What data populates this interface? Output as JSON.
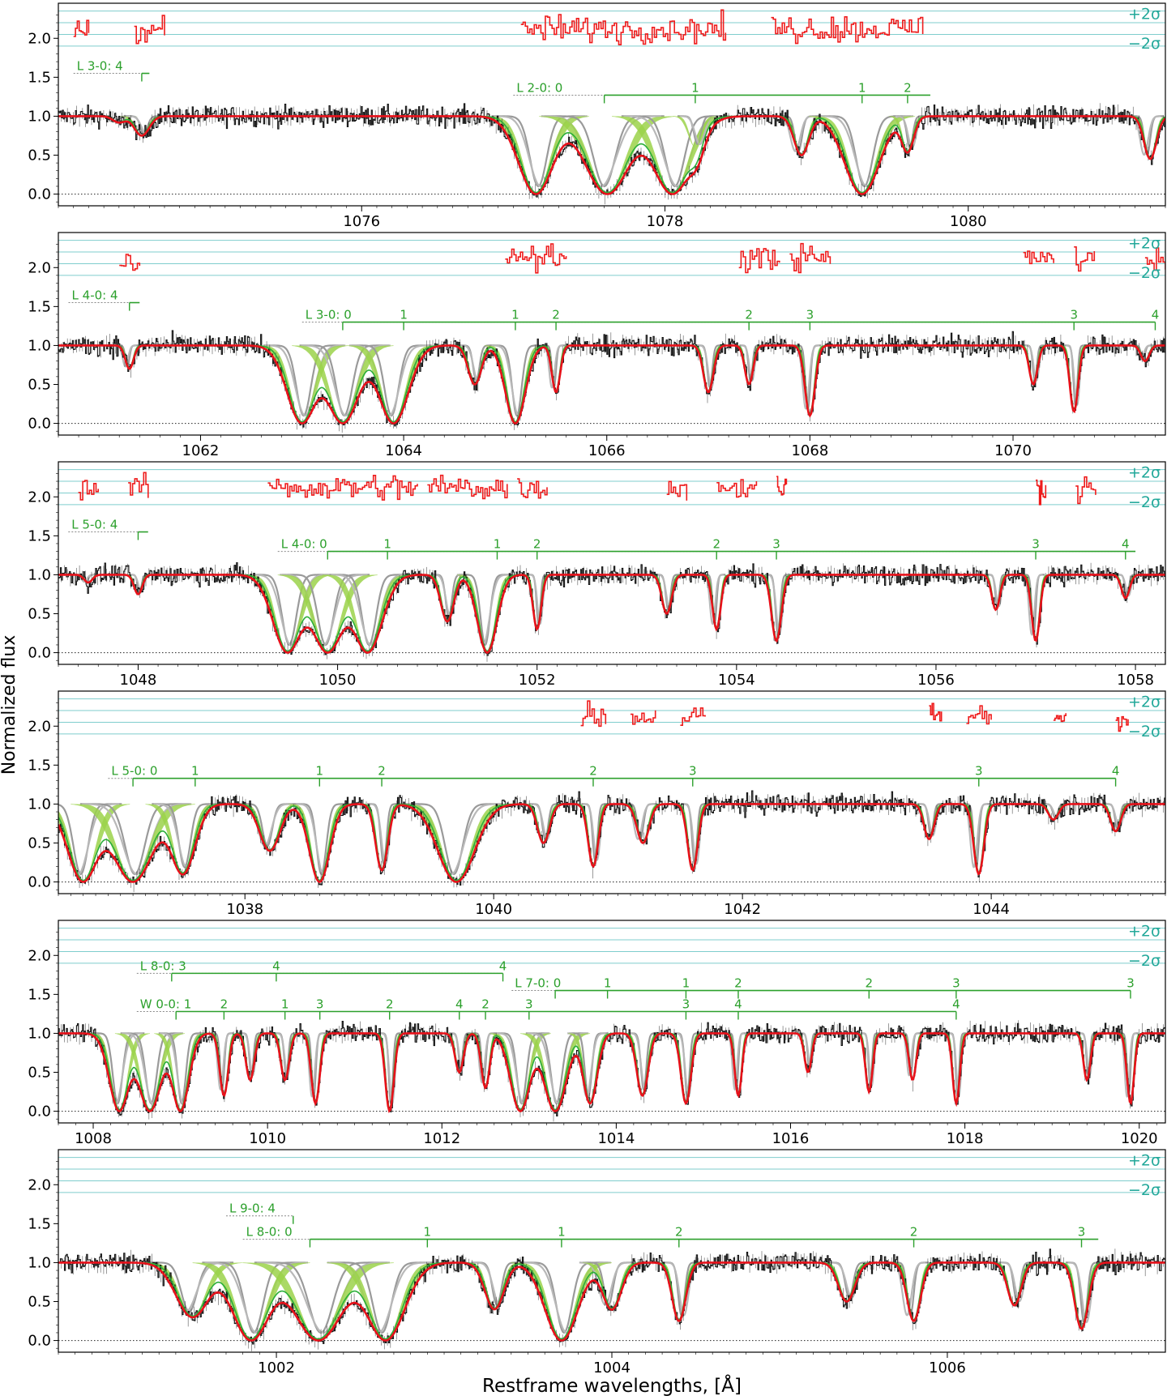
{
  "figure": {
    "ylabel": "Normalized flux",
    "xlabel": "Restframe wavelengths, [Å]",
    "sigma_plus": "+2σ",
    "sigma_minus": "−2σ"
  },
  "colors": {
    "data": "#111111",
    "model_total": "#e8111a",
    "residuals": "#ee1c1c",
    "h2_light": "#9bd24a",
    "h2_dark": "#2bae3a",
    "components": "#9a9a9a",
    "sigma_lines": "#7fcdcd",
    "labels": "#2ca02c",
    "sigma_text": "#22a89a"
  },
  "chart_data": [
    {
      "type": "line",
      "panel": 1,
      "xlim": [
        1074.0,
        1081.3
      ],
      "ylim": [
        -0.15,
        2.45
      ],
      "xticks": [
        1076,
        1078,
        1080
      ],
      "yticks": [
        0.0,
        0.5,
        1.0,
        1.5,
        2.0
      ],
      "ladders": [
        {
          "label": "L 3-0: 4",
          "x0": 1074.1,
          "x1": 1074.6,
          "y": 1.55,
          "ticks": [
            {
              "x": 1074.55,
              "label": "4"
            }
          ]
        },
        {
          "label": "L 2-0: 0",
          "x0": 1077.0,
          "x1": 1079.75,
          "y": 1.27,
          "ticks": [
            {
              "x": 1077.6,
              "label": "0"
            },
            {
              "x": 1078.2,
              "label": "1"
            },
            {
              "x": 1079.3,
              "label": "1"
            },
            {
              "x": 1079.6,
              "label": "2"
            }
          ]
        }
      ],
      "absorptions": [
        {
          "x": 1074.4,
          "depth": 0.08,
          "width": 0.05
        },
        {
          "x": 1074.55,
          "depth": 0.25,
          "width": 0.06
        },
        {
          "x": 1077.15,
          "depth": 1.0,
          "width": 0.14
        },
        {
          "x": 1077.62,
          "depth": 1.0,
          "width": 0.18
        },
        {
          "x": 1078.05,
          "depth": 1.0,
          "width": 0.16
        },
        {
          "x": 1078.2,
          "depth": 0.4,
          "width": 0.06
        },
        {
          "x": 1078.9,
          "depth": 0.5,
          "width": 0.06
        },
        {
          "x": 1079.3,
          "depth": 1.0,
          "width": 0.14
        },
        {
          "x": 1079.6,
          "depth": 0.45,
          "width": 0.05
        },
        {
          "x": 1081.2,
          "depth": 0.55,
          "width": 0.05
        }
      ],
      "residual_segments": [
        [
          1074.1,
          1074.2
        ],
        [
          1074.5,
          1074.7
        ],
        [
          1077.05,
          1078.4
        ],
        [
          1078.7,
          1079.7
        ]
      ]
    },
    {
      "type": "line",
      "panel": 2,
      "xlim": [
        1060.6,
        1071.5
      ],
      "ylim": [
        -0.15,
        2.45
      ],
      "xticks": [
        1062,
        1064,
        1066,
        1068,
        1070
      ],
      "yticks": [
        0.0,
        0.5,
        1.0,
        1.5,
        2.0
      ],
      "ladders": [
        {
          "label": "L 4-0: 4",
          "x0": 1060.7,
          "x1": 1061.4,
          "y": 1.55,
          "ticks": [
            {
              "x": 1061.3,
              "label": "4"
            }
          ]
        },
        {
          "label": "L 3-0: 0",
          "x0": 1063.0,
          "x1": 1071.4,
          "y": 1.3,
          "ticks": [
            {
              "x": 1063.4,
              "label": "0"
            },
            {
              "x": 1064.0,
              "label": "1"
            },
            {
              "x": 1065.1,
              "label": "1"
            },
            {
              "x": 1065.5,
              "label": "2"
            },
            {
              "x": 1067.4,
              "label": "2"
            },
            {
              "x": 1068.0,
              "label": "3"
            },
            {
              "x": 1070.6,
              "label": "3"
            },
            {
              "x": 1071.4,
              "label": "4"
            }
          ]
        }
      ],
      "absorptions": [
        {
          "x": 1061.3,
          "depth": 0.3,
          "width": 0.05
        },
        {
          "x": 1063.0,
          "depth": 1.0,
          "width": 0.18
        },
        {
          "x": 1063.4,
          "depth": 1.0,
          "width": 0.2
        },
        {
          "x": 1063.9,
          "depth": 1.0,
          "width": 0.18
        },
        {
          "x": 1064.7,
          "depth": 0.5,
          "width": 0.08
        },
        {
          "x": 1065.1,
          "depth": 1.0,
          "width": 0.12
        },
        {
          "x": 1065.5,
          "depth": 0.6,
          "width": 0.05
        },
        {
          "x": 1067.0,
          "depth": 0.6,
          "width": 0.06
        },
        {
          "x": 1067.4,
          "depth": 0.5,
          "width": 0.05
        },
        {
          "x": 1068.0,
          "depth": 0.9,
          "width": 0.06
        },
        {
          "x": 1070.2,
          "depth": 0.5,
          "width": 0.05
        },
        {
          "x": 1070.6,
          "depth": 0.85,
          "width": 0.05
        },
        {
          "x": 1071.3,
          "depth": 0.2,
          "width": 0.05
        }
      ],
      "residual_segments": [
        [
          1061.2,
          1061.4
        ],
        [
          1065.0,
          1065.6
        ],
        [
          1067.3,
          1067.7
        ],
        [
          1067.8,
          1068.2
        ],
        [
          1070.1,
          1070.4
        ],
        [
          1070.6,
          1070.8
        ],
        [
          1071.3,
          1071.5
        ]
      ]
    },
    {
      "type": "line",
      "panel": 3,
      "xlim": [
        1047.2,
        1058.3
      ],
      "ylim": [
        -0.15,
        2.45
      ],
      "xticks": [
        1048,
        1050,
        1052,
        1054,
        1056,
        1058
      ],
      "yticks": [
        0.0,
        0.5,
        1.0,
        1.5,
        2.0
      ],
      "ladders": [
        {
          "label": "L 5-0: 4",
          "x0": 1047.3,
          "x1": 1048.1,
          "y": 1.55,
          "ticks": [
            {
              "x": 1048.0,
              "label": "4"
            }
          ]
        },
        {
          "label": "L 4-0: 0",
          "x0": 1049.4,
          "x1": 1058.0,
          "y": 1.3,
          "ticks": [
            {
              "x": 1049.9,
              "label": "0"
            },
            {
              "x": 1050.5,
              "label": "1"
            },
            {
              "x": 1051.6,
              "label": "1"
            },
            {
              "x": 1052.0,
              "label": "2"
            },
            {
              "x": 1053.8,
              "label": "2"
            },
            {
              "x": 1054.4,
              "label": "3"
            },
            {
              "x": 1057.0,
              "label": "3"
            },
            {
              "x": 1057.9,
              "label": "4"
            }
          ]
        }
      ],
      "absorptions": [
        {
          "x": 1047.5,
          "depth": 0.1,
          "width": 0.05
        },
        {
          "x": 1048.0,
          "depth": 0.25,
          "width": 0.05
        },
        {
          "x": 1049.5,
          "depth": 1.0,
          "width": 0.18
        },
        {
          "x": 1049.9,
          "depth": 1.0,
          "width": 0.2
        },
        {
          "x": 1050.3,
          "depth": 1.0,
          "width": 0.18
        },
        {
          "x": 1051.1,
          "depth": 0.6,
          "width": 0.08
        },
        {
          "x": 1051.5,
          "depth": 1.0,
          "width": 0.12
        },
        {
          "x": 1052.0,
          "depth": 0.7,
          "width": 0.05
        },
        {
          "x": 1053.3,
          "depth": 0.5,
          "width": 0.06
        },
        {
          "x": 1053.8,
          "depth": 0.7,
          "width": 0.05
        },
        {
          "x": 1054.4,
          "depth": 0.85,
          "width": 0.06
        },
        {
          "x": 1056.6,
          "depth": 0.45,
          "width": 0.05
        },
        {
          "x": 1057.0,
          "depth": 0.85,
          "width": 0.05
        },
        {
          "x": 1057.9,
          "depth": 0.3,
          "width": 0.05
        }
      ],
      "residual_segments": [
        [
          1047.4,
          1047.6
        ],
        [
          1047.9,
          1048.1
        ],
        [
          1049.3,
          1050.8
        ],
        [
          1050.9,
          1051.7
        ],
        [
          1051.8,
          1052.1
        ],
        [
          1053.3,
          1053.5
        ],
        [
          1053.8,
          1054.2
        ],
        [
          1054.4,
          1054.5
        ],
        [
          1057.0,
          1057.1
        ],
        [
          1057.4,
          1057.6
        ]
      ]
    },
    {
      "type": "line",
      "panel": 4,
      "xlim": [
        1036.5,
        1045.4
      ],
      "ylim": [
        -0.15,
        2.45
      ],
      "xticks": [
        1038,
        1040,
        1042,
        1044
      ],
      "yticks": [
        0.0,
        0.5,
        1.0,
        1.5,
        2.0
      ],
      "ladders": [
        {
          "label": "L 5-0: 0",
          "x0": 1036.9,
          "x1": 1045.0,
          "y": 1.33,
          "ticks": [
            {
              "x": 1037.1,
              "label": "0"
            },
            {
              "x": 1037.6,
              "label": "1"
            },
            {
              "x": 1038.6,
              "label": "1"
            },
            {
              "x": 1039.1,
              "label": "2"
            },
            {
              "x": 1040.8,
              "label": "2"
            },
            {
              "x": 1041.6,
              "label": "3"
            },
            {
              "x": 1043.9,
              "label": "3"
            },
            {
              "x": 1045.0,
              "label": "4"
            }
          ]
        }
      ],
      "absorptions": [
        {
          "x": 1036.7,
          "depth": 1.0,
          "width": 0.15
        },
        {
          "x": 1037.1,
          "depth": 1.0,
          "width": 0.2
        },
        {
          "x": 1037.5,
          "depth": 0.9,
          "width": 0.12
        },
        {
          "x": 1038.2,
          "depth": 0.6,
          "width": 0.1
        },
        {
          "x": 1038.6,
          "depth": 1.0,
          "width": 0.1
        },
        {
          "x": 1039.1,
          "depth": 0.85,
          "width": 0.06
        },
        {
          "x": 1039.7,
          "depth": 1.0,
          "width": 0.18
        },
        {
          "x": 1040.4,
          "depth": 0.5,
          "width": 0.06
        },
        {
          "x": 1040.8,
          "depth": 0.8,
          "width": 0.05
        },
        {
          "x": 1041.2,
          "depth": 0.5,
          "width": 0.06
        },
        {
          "x": 1041.6,
          "depth": 0.85,
          "width": 0.05
        },
        {
          "x": 1043.5,
          "depth": 0.45,
          "width": 0.05
        },
        {
          "x": 1043.9,
          "depth": 0.9,
          "width": 0.05
        },
        {
          "x": 1044.5,
          "depth": 0.2,
          "width": 0.05
        },
        {
          "x": 1045.0,
          "depth": 0.35,
          "width": 0.05
        }
      ],
      "residual_segments": [
        [
          1040.7,
          1040.9
        ],
        [
          1041.1,
          1041.3
        ],
        [
          1041.5,
          1041.7
        ],
        [
          1043.5,
          1043.6
        ],
        [
          1043.8,
          1044.0
        ],
        [
          1044.5,
          1044.6
        ],
        [
          1045.0,
          1045.1
        ]
      ]
    },
    {
      "type": "line",
      "panel": 5,
      "xlim": [
        1007.6,
        1020.3
      ],
      "ylim": [
        -0.15,
        2.45
      ],
      "xticks": [
        1008,
        1010,
        1012,
        1014,
        1016,
        1018,
        1020
      ],
      "yticks": [
        0.0,
        0.5,
        1.0,
        1.5,
        2.0
      ],
      "ladders": [
        {
          "label": "L 8-0: 3",
          "x0": 1008.5,
          "x1": 1012.7,
          "y": 1.77,
          "ticks": [
            {
              "x": 1008.9,
              "label": "3"
            },
            {
              "x": 1010.1,
              "label": "4"
            },
            {
              "x": 1012.7,
              "label": "4"
            }
          ]
        },
        {
          "label": "L 7-0: 0",
          "x0": 1012.8,
          "x1": 1019.9,
          "y": 1.55,
          "ticks": [
            {
              "x": 1013.3,
              "label": "0"
            },
            {
              "x": 1013.9,
              "label": "1"
            },
            {
              "x": 1014.8,
              "label": "1"
            },
            {
              "x": 1015.4,
              "label": "2"
            },
            {
              "x": 1016.9,
              "label": "2"
            },
            {
              "x": 1017.9,
              "label": "3"
            },
            {
              "x": 1019.9,
              "label": "3"
            }
          ]
        },
        {
          "label": "W 0-0: 1",
          "x0": 1008.5,
          "x1": 1017.9,
          "y": 1.28,
          "ticks": [
            {
              "x": 1008.95,
              "label": "0"
            },
            {
              "x": 1009.5,
              "label": "2"
            },
            {
              "x": 1010.2,
              "label": "1"
            },
            {
              "x": 1010.6,
              "label": "3"
            },
            {
              "x": 1011.4,
              "label": "2"
            },
            {
              "x": 1012.2,
              "label": "4"
            },
            {
              "x": 1012.5,
              "label": "2"
            },
            {
              "x": 1013.0,
              "label": "3"
            },
            {
              "x": 1014.8,
              "label": "3"
            },
            {
              "x": 1015.4,
              "label": "4"
            },
            {
              "x": 1017.9,
              "label": "4"
            }
          ]
        }
      ],
      "absorptions": [
        {
          "x": 1008.3,
          "depth": 1.0,
          "width": 0.14
        },
        {
          "x": 1008.65,
          "depth": 1.0,
          "width": 0.16
        },
        {
          "x": 1009.0,
          "depth": 1.0,
          "width": 0.12
        },
        {
          "x": 1009.5,
          "depth": 0.8,
          "width": 0.06
        },
        {
          "x": 1009.8,
          "depth": 0.6,
          "width": 0.06
        },
        {
          "x": 1010.2,
          "depth": 0.6,
          "width": 0.06
        },
        {
          "x": 1010.55,
          "depth": 0.9,
          "width": 0.06
        },
        {
          "x": 1011.4,
          "depth": 1.0,
          "width": 0.06
        },
        {
          "x": 1012.2,
          "depth": 0.5,
          "width": 0.06
        },
        {
          "x": 1012.5,
          "depth": 0.7,
          "width": 0.06
        },
        {
          "x": 1012.9,
          "depth": 1.0,
          "width": 0.14
        },
        {
          "x": 1013.3,
          "depth": 1.0,
          "width": 0.16
        },
        {
          "x": 1013.7,
          "depth": 0.9,
          "width": 0.1
        },
        {
          "x": 1014.3,
          "depth": 0.8,
          "width": 0.08
        },
        {
          "x": 1014.8,
          "depth": 0.9,
          "width": 0.07
        },
        {
          "x": 1015.4,
          "depth": 0.8,
          "width": 0.05
        },
        {
          "x": 1016.2,
          "depth": 0.5,
          "width": 0.05
        },
        {
          "x": 1016.9,
          "depth": 0.75,
          "width": 0.05
        },
        {
          "x": 1017.4,
          "depth": 0.6,
          "width": 0.05
        },
        {
          "x": 1017.9,
          "depth": 0.9,
          "width": 0.05
        },
        {
          "x": 1019.4,
          "depth": 0.6,
          "width": 0.05
        },
        {
          "x": 1019.9,
          "depth": 0.9,
          "width": 0.05
        }
      ],
      "residual_segments": []
    },
    {
      "type": "line",
      "panel": 6,
      "xlim": [
        1000.7,
        1007.3
      ],
      "ylim": [
        -0.15,
        2.45
      ],
      "xticks": [
        1002,
        1004,
        1006
      ],
      "yticks": [
        0.0,
        0.5,
        1.0,
        1.5,
        2.0
      ],
      "ladders": [
        {
          "label": "L 9-0: 4",
          "x0": 1001.7,
          "x1": 1002.1,
          "y": 1.6,
          "ticks": [
            {
              "x": 1002.1,
              "label": "4"
            }
          ]
        },
        {
          "label": "L 8-0: 0",
          "x0": 1001.8,
          "x1": 1006.9,
          "y": 1.3,
          "ticks": [
            {
              "x": 1002.2,
              "label": "0"
            },
            {
              "x": 1002.9,
              "label": "1"
            },
            {
              "x": 1003.7,
              "label": "1"
            },
            {
              "x": 1004.4,
              "label": "2"
            },
            {
              "x": 1005.8,
              "label": "2"
            },
            {
              "x": 1006.8,
              "label": "3"
            }
          ]
        }
      ],
      "absorptions": [
        {
          "x": 1001.5,
          "depth": 0.7,
          "width": 0.12
        },
        {
          "x": 1001.85,
          "depth": 1.0,
          "width": 0.14
        },
        {
          "x": 1002.25,
          "depth": 1.0,
          "width": 0.18
        },
        {
          "x": 1002.65,
          "depth": 1.0,
          "width": 0.14
        },
        {
          "x": 1003.3,
          "depth": 0.6,
          "width": 0.07
        },
        {
          "x": 1003.7,
          "depth": 1.0,
          "width": 0.12
        },
        {
          "x": 1004.0,
          "depth": 0.6,
          "width": 0.07
        },
        {
          "x": 1004.4,
          "depth": 0.75,
          "width": 0.05
        },
        {
          "x": 1005.4,
          "depth": 0.5,
          "width": 0.06
        },
        {
          "x": 1005.8,
          "depth": 0.75,
          "width": 0.05
        },
        {
          "x": 1006.4,
          "depth": 0.55,
          "width": 0.05
        },
        {
          "x": 1006.8,
          "depth": 0.85,
          "width": 0.05
        }
      ],
      "residual_segments": []
    }
  ]
}
